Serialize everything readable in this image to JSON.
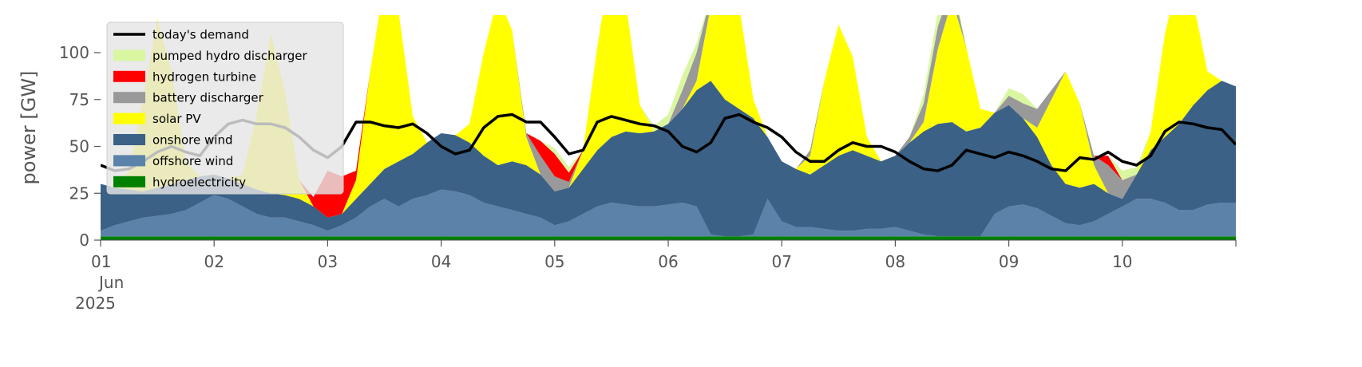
{
  "chart_data": {
    "type": "area",
    "ylabel": "power [GW]",
    "x": [
      "2025-06-01T00:00",
      "2025-06-01T03:00",
      "2025-06-01T06:00",
      "2025-06-01T09:00",
      "2025-06-01T12:00",
      "2025-06-01T15:00",
      "2025-06-01T18:00",
      "2025-06-01T21:00",
      "2025-06-02T00:00",
      "2025-06-02T03:00",
      "2025-06-02T06:00",
      "2025-06-02T09:00",
      "2025-06-02T12:00",
      "2025-06-02T15:00",
      "2025-06-02T18:00",
      "2025-06-02T21:00",
      "2025-06-03T00:00",
      "2025-06-03T03:00",
      "2025-06-03T06:00",
      "2025-06-03T09:00",
      "2025-06-03T12:00",
      "2025-06-03T15:00",
      "2025-06-03T18:00",
      "2025-06-03T21:00",
      "2025-06-04T00:00",
      "2025-06-04T03:00",
      "2025-06-04T06:00",
      "2025-06-04T09:00",
      "2025-06-04T12:00",
      "2025-06-04T15:00",
      "2025-06-04T18:00",
      "2025-06-04T21:00",
      "2025-06-05T00:00",
      "2025-06-05T03:00",
      "2025-06-05T06:00",
      "2025-06-05T09:00",
      "2025-06-05T12:00",
      "2025-06-05T15:00",
      "2025-06-05T18:00",
      "2025-06-05T21:00",
      "2025-06-06T00:00",
      "2025-06-06T03:00",
      "2025-06-06T06:00",
      "2025-06-06T09:00",
      "2025-06-06T12:00",
      "2025-06-06T15:00",
      "2025-06-06T18:00",
      "2025-06-06T21:00",
      "2025-06-07T00:00",
      "2025-06-07T03:00",
      "2025-06-07T06:00",
      "2025-06-07T09:00",
      "2025-06-07T12:00",
      "2025-06-07T15:00",
      "2025-06-07T18:00",
      "2025-06-07T21:00",
      "2025-06-08T00:00",
      "2025-06-08T03:00",
      "2025-06-08T06:00",
      "2025-06-08T09:00",
      "2025-06-08T12:00",
      "2025-06-08T15:00",
      "2025-06-08T18:00",
      "2025-06-08T21:00",
      "2025-06-09T00:00",
      "2025-06-09T03:00",
      "2025-06-09T06:00",
      "2025-06-09T09:00",
      "2025-06-09T12:00",
      "2025-06-09T15:00",
      "2025-06-09T18:00",
      "2025-06-09T21:00",
      "2025-06-10T00:00",
      "2025-06-10T03:00",
      "2025-06-10T06:00",
      "2025-06-10T09:00",
      "2025-06-10T12:00",
      "2025-06-10T15:00",
      "2025-06-10T18:00",
      "2025-06-10T21:00",
      "2025-06-11T00:00"
    ],
    "xlim": [
      "2025-06-01T00:00",
      "2025-06-11T00:00"
    ],
    "xticks": [
      {
        "value": "2025-06-01T00:00",
        "label": "01\nJun\n2025"
      },
      {
        "value": "2025-06-02T00:00",
        "label": "02"
      },
      {
        "value": "2025-06-03T00:00",
        "label": "03"
      },
      {
        "value": "2025-06-04T00:00",
        "label": "04"
      },
      {
        "value": "2025-06-05T00:00",
        "label": "05"
      },
      {
        "value": "2025-06-06T00:00",
        "label": "06"
      },
      {
        "value": "2025-06-07T00:00",
        "label": "07"
      },
      {
        "value": "2025-06-08T00:00",
        "label": "08"
      },
      {
        "value": "2025-06-09T00:00",
        "label": "09"
      },
      {
        "value": "2025-06-10T00:00",
        "label": "10"
      },
      {
        "value": "2025-06-11T00:00",
        "label": ""
      }
    ],
    "ylim": [
      0,
      120
    ],
    "yticks": [
      0,
      25,
      50,
      75,
      100
    ],
    "legend": "upper left",
    "series": [
      {
        "name": "today's demand",
        "color": "#000000",
        "style": "line",
        "values": [
          40,
          37,
          38,
          42,
          47,
          50,
          47,
          45,
          55,
          62,
          64,
          62,
          62,
          60,
          55,
          48,
          44,
          50,
          63,
          63,
          61,
          60,
          62,
          57,
          50,
          46,
          48,
          60,
          66,
          67,
          63,
          63,
          55,
          46,
          48,
          63,
          66,
          64,
          62,
          61,
          58,
          50,
          47,
          52,
          65,
          67,
          63,
          60,
          55,
          47,
          42,
          42,
          48,
          52,
          50,
          50,
          47,
          42,
          38,
          37,
          40,
          48,
          46,
          44,
          47,
          45,
          42,
          38,
          37,
          44,
          43,
          47,
          42,
          40,
          45,
          58,
          63,
          62,
          60,
          59,
          51
        ]
      },
      {
        "name": "pumped hydro discharger",
        "color": "#d9f7a1",
        "values": [
          0,
          0,
          0,
          0,
          0,
          0,
          0,
          0,
          0,
          0,
          0,
          0,
          0,
          0,
          0,
          0,
          0,
          0,
          0,
          0,
          0,
          0,
          0,
          0,
          0,
          0,
          0,
          0,
          0,
          0,
          0,
          0,
          3,
          3,
          0,
          0,
          0,
          0,
          0,
          3,
          5,
          8,
          5,
          0,
          0,
          0,
          0,
          0,
          0,
          0,
          0,
          0,
          0,
          0,
          0,
          0,
          0,
          0,
          5,
          8,
          5,
          0,
          0,
          0,
          4,
          5,
          0,
          0,
          0,
          0,
          0,
          0,
          5,
          4,
          0,
          0,
          0,
          0,
          0,
          0,
          0
        ]
      },
      {
        "name": "hydrogen turbine",
        "color": "#ff0000",
        "values": [
          0,
          0,
          0,
          0,
          0,
          0,
          0,
          0,
          0,
          0,
          0,
          0,
          0,
          0,
          0,
          5,
          25,
          20,
          5,
          0,
          0,
          0,
          0,
          0,
          0,
          0,
          0,
          0,
          0,
          0,
          0,
          8,
          12,
          5,
          0,
          0,
          0,
          0,
          0,
          0,
          0,
          0,
          0,
          0,
          0,
          0,
          0,
          0,
          0,
          0,
          0,
          0,
          0,
          0,
          0,
          0,
          0,
          0,
          0,
          0,
          0,
          0,
          0,
          0,
          0,
          0,
          0,
          0,
          0,
          0,
          0,
          5,
          0,
          0,
          0,
          0,
          0,
          0,
          0,
          0,
          0
        ]
      },
      {
        "name": "battery discharger",
        "color": "#999999",
        "values": [
          0,
          0,
          0,
          0,
          0,
          0,
          0,
          0,
          0,
          0,
          0,
          0,
          0,
          0,
          0,
          0,
          0,
          0,
          0,
          0,
          0,
          0,
          0,
          0,
          0,
          0,
          0,
          0,
          0,
          0,
          2,
          10,
          8,
          3,
          0,
          0,
          0,
          0,
          0,
          0,
          0,
          10,
          15,
          5,
          0,
          0,
          0,
          0,
          0,
          0,
          3,
          0,
          0,
          0,
          0,
          0,
          0,
          3,
          10,
          12,
          8,
          0,
          0,
          0,
          5,
          8,
          10,
          5,
          0,
          0,
          5,
          15,
          10,
          0,
          0,
          0,
          0,
          0,
          0,
          0,
          0
        ]
      },
      {
        "name": "solar PV",
        "color": "#ffff00",
        "values": [
          0,
          0,
          10,
          50,
          90,
          60,
          10,
          0,
          0,
          0,
          5,
          40,
          85,
          55,
          10,
          0,
          0,
          0,
          10,
          60,
          100,
          80,
          20,
          0,
          0,
          0,
          10,
          55,
          90,
          70,
          15,
          0,
          0,
          0,
          10,
          55,
          95,
          70,
          15,
          0,
          0,
          0,
          5,
          40,
          80,
          55,
          10,
          0,
          0,
          0,
          10,
          45,
          70,
          50,
          10,
          0,
          0,
          0,
          5,
          40,
          65,
          45,
          10,
          0,
          0,
          0,
          5,
          35,
          60,
          45,
          10,
          0,
          0,
          0,
          10,
          55,
          80,
          55,
          10,
          0,
          0
        ]
      },
      {
        "name": "onshore wind",
        "color": "#3b6186",
        "values": [
          25,
          20,
          17,
          14,
          15,
          16,
          16,
          14,
          11,
          11,
          12,
          13,
          13,
          12,
          12,
          10,
          7,
          6,
          10,
          12,
          16,
          24,
          24,
          28,
          30,
          30,
          28,
          25,
          22,
          26,
          26,
          23,
          18,
          18,
          24,
          30,
          35,
          39,
          39,
          40,
          43,
          50,
          62,
          82,
          73,
          68,
          62,
          33,
          32,
          31,
          28,
          34,
          40,
          43,
          39,
          36,
          38,
          47,
          55,
          60,
          61,
          56,
          58,
          54,
          54,
          46,
          38,
          27,
          21,
          20,
          20,
          11,
          4,
          13,
          26,
          35,
          46,
          56,
          61,
          65,
          62
        ]
      },
      {
        "name": "offshore wind",
        "color": "#5b82a8",
        "values": [
          3,
          6,
          8,
          10,
          11,
          12,
          14,
          18,
          22,
          20,
          16,
          12,
          10,
          10,
          8,
          6,
          3,
          6,
          10,
          16,
          20,
          16,
          20,
          22,
          25,
          24,
          22,
          18,
          16,
          14,
          12,
          10,
          6,
          8,
          12,
          16,
          18,
          17,
          16,
          16,
          17,
          18,
          16,
          1,
          0,
          0,
          1,
          20,
          8,
          5,
          5,
          4,
          3,
          3,
          4,
          4,
          5,
          3,
          1,
          0,
          0,
          0,
          0,
          12,
          16,
          17,
          15,
          11,
          7,
          6,
          8,
          12,
          16,
          20,
          20,
          18,
          14,
          14,
          17,
          18,
          18
        ]
      },
      {
        "name": "hydroelectricity",
        "color": "#008000",
        "values": [
          2,
          2,
          2,
          2,
          2,
          2,
          2,
          2,
          2,
          2,
          2,
          2,
          2,
          2,
          2,
          2,
          2,
          2,
          2,
          2,
          2,
          2,
          2,
          2,
          2,
          2,
          2,
          2,
          2,
          2,
          2,
          2,
          2,
          2,
          2,
          2,
          2,
          2,
          2,
          2,
          2,
          2,
          2,
          2,
          2,
          2,
          2,
          2,
          2,
          2,
          2,
          2,
          2,
          2,
          2,
          2,
          2,
          2,
          2,
          2,
          2,
          2,
          2,
          2,
          2,
          2,
          2,
          2,
          2,
          2,
          2,
          2,
          2,
          2,
          2,
          2,
          2,
          2,
          2,
          2,
          2
        ]
      }
    ]
  }
}
